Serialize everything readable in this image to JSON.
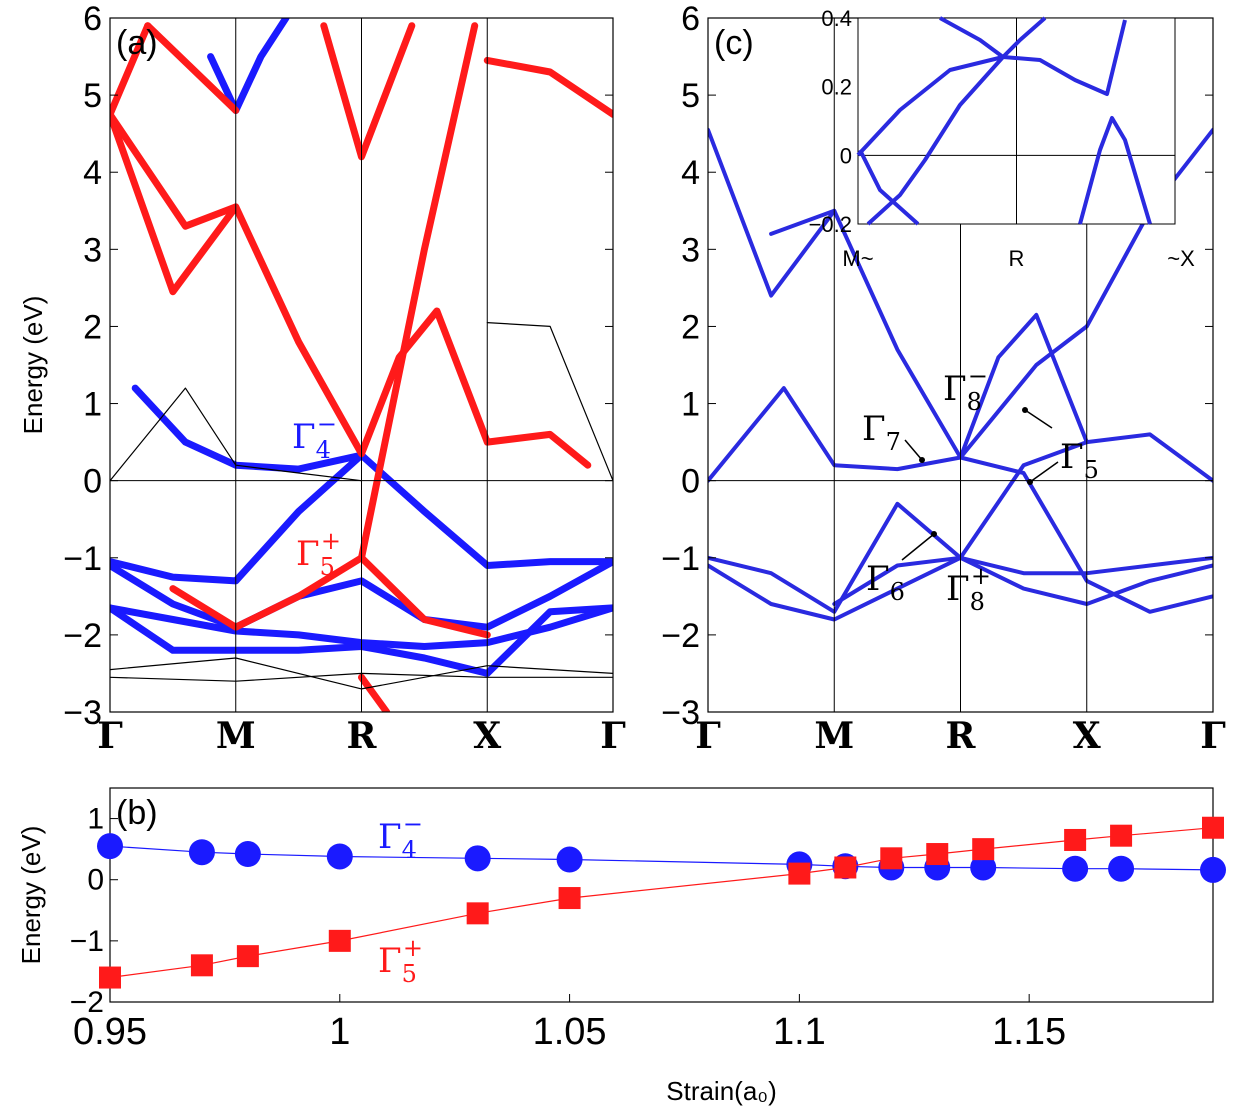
{
  "chart_data": [
    {
      "type": "line",
      "panel_label": "(a)",
      "ylabel": "Energy (eV)",
      "ylim": [
        -3,
        6
      ],
      "yticks": [
        "6",
        "5",
        "4",
        "3",
        "2",
        "1",
        "0",
        "−1",
        "−2",
        "−3"
      ],
      "kpoints": [
        "Γ",
        "M",
        "R",
        "X",
        "Γ"
      ],
      "annotations": [
        {
          "symbol": "Γ",
          "sub": "4",
          "sup": "−",
          "color": "#1a1aff"
        },
        {
          "symbol": "Γ",
          "sub": "5",
          "sup": "+",
          "color": "#ff1a1a"
        }
      ],
      "series": [
        {
          "color": "#1a1aff",
          "points": [
            [
              0,
              -1.05
            ],
            [
              0.5,
              -1.25
            ],
            [
              1,
              -1.3
            ],
            [
              1.5,
              -0.4
            ],
            [
              2,
              0.33
            ],
            [
              2.5,
              -0.4
            ],
            [
              3,
              -1.1
            ],
            [
              3.5,
              -1.05
            ],
            [
              4,
              -1.05
            ]
          ]
        },
        {
          "color": "#1a1aff",
          "points": [
            [
              0,
              -1.65
            ],
            [
              0.5,
              -1.8
            ],
            [
              1,
              -1.95
            ],
            [
              1.5,
              -2.0
            ],
            [
              2,
              -2.1
            ],
            [
              2.5,
              -2.15
            ],
            [
              3,
              -2.1
            ],
            [
              3.5,
              -1.9
            ],
            [
              4,
              -1.65
            ]
          ]
        },
        {
          "color": "#1a1aff",
          "points": [
            [
              0,
              -1.65
            ],
            [
              0.5,
              -2.2
            ],
            [
              1,
              -2.2
            ],
            [
              1.5,
              -2.2
            ],
            [
              2,
              -2.15
            ],
            [
              2.5,
              -2.3
            ],
            [
              3,
              -2.5
            ],
            [
              3.5,
              -1.7
            ],
            [
              4,
              -1.65
            ]
          ]
        },
        {
          "color": "#1a1aff",
          "points": [
            [
              0,
              -1.1
            ],
            [
              0.5,
              -1.6
            ],
            [
              1,
              -1.9
            ],
            [
              1.5,
              -1.5
            ],
            [
              2,
              -1.3
            ],
            [
              2.5,
              -1.8
            ],
            [
              3,
              -1.9
            ],
            [
              3.5,
              -1.5
            ],
            [
              4,
              -1.05
            ]
          ]
        },
        {
          "color": "#1a1aff",
          "points": [
            [
              0.8,
              5.5
            ],
            [
              1,
              4.8
            ],
            [
              1.2,
              5.5
            ],
            [
              1.4,
              6
            ]
          ]
        },
        {
          "color": "#1a1aff",
          "points": [
            [
              0.2,
              1.2
            ],
            [
              0.6,
              0.5
            ],
            [
              1,
              0.2
            ],
            [
              1.5,
              0.15
            ],
            [
              2,
              0.33
            ]
          ]
        },
        {
          "color": "#ff1a1a",
          "points": [
            [
              0,
              4.75
            ],
            [
              0.6,
              3.3
            ],
            [
              1,
              3.55
            ],
            [
              1.5,
              1.8
            ],
            [
              2,
              0.35
            ],
            [
              2.3,
              1.6
            ],
            [
              2.6,
              2.2
            ],
            [
              3,
              0.5
            ],
            [
              3.5,
              0.6
            ],
            [
              3.8,
              0.2
            ]
          ]
        },
        {
          "color": "#ff1a1a",
          "points": [
            [
              0,
              4.75
            ],
            [
              0.5,
              2.45
            ],
            [
              1,
              3.55
            ]
          ]
        },
        {
          "color": "#ff1a1a",
          "points": [
            [
              0.3,
              5.9
            ],
            [
              1,
              4.8
            ]
          ]
        },
        {
          "color": "#ff1a1a",
          "points": [
            [
              1.7,
              5.9
            ],
            [
              2,
              4.2
            ],
            [
              2.4,
              5.9
            ]
          ]
        },
        {
          "color": "#ff1a1a",
          "points": [
            [
              0,
              4.75
            ],
            [
              0.3,
              5.9
            ]
          ]
        },
        {
          "color": "#ff1a1a",
          "points": [
            [
              3,
              5.45
            ],
            [
              3.5,
              5.3
            ],
            [
              4,
              4.75
            ]
          ]
        },
        {
          "color": "#ff1a1a",
          "points": [
            [
              2,
              -1.0
            ],
            [
              2.5,
              3.0
            ],
            [
              2.9,
              5.9
            ]
          ]
        },
        {
          "color": "#ff1a1a",
          "points": [
            [
              0.5,
              -1.4
            ],
            [
              1,
              -1.9
            ],
            [
              1.5,
              -1.5
            ],
            [
              2,
              -1.0
            ],
            [
              2.5,
              -1.8
            ],
            [
              3,
              -2.0
            ]
          ]
        },
        {
          "color": "#ff1a1a",
          "points": [
            [
              2,
              -2.55
            ],
            [
              2.2,
              -3.0
            ]
          ]
        },
        {
          "color": "#000000",
          "points": [
            [
              0,
              0
            ],
            [
              0.6,
              1.2
            ],
            [
              1,
              0.2
            ],
            [
              1.5,
              0.1
            ],
            [
              2,
              0
            ]
          ]
        },
        {
          "color": "#000000",
          "points": [
            [
              0,
              -2.55
            ],
            [
              1,
              -2.6
            ],
            [
              2,
              -2.5
            ],
            [
              3,
              -2.55
            ],
            [
              4,
              -2.55
            ]
          ]
        },
        {
          "color": "#000000",
          "points": [
            [
              0,
              -2.45
            ],
            [
              1,
              -2.3
            ],
            [
              2,
              -2.7
            ],
            [
              3,
              -2.4
            ],
            [
              4,
              -2.5
            ]
          ]
        },
        {
          "color": "#000000",
          "points": [
            [
              3,
              2.05
            ],
            [
              3.5,
              2.0
            ],
            [
              4,
              0.0
            ]
          ]
        }
      ]
    },
    {
      "type": "line",
      "panel_label": "(c)",
      "ylim": [
        -3,
        6
      ],
      "yticks": [
        "6",
        "5",
        "4",
        "3",
        "2",
        "1",
        "0",
        "−1",
        "−2",
        "−3"
      ],
      "kpoints": [
        "Γ",
        "M",
        "R",
        "X",
        "Γ"
      ],
      "annotations": [
        {
          "symbol": "Γ",
          "sub": "7",
          "sup": ""
        },
        {
          "symbol": "Γ",
          "sub": "8",
          "sup": "−"
        },
        {
          "symbol": "Γ",
          "sub": "5",
          "sup": ""
        },
        {
          "symbol": "Γ",
          "sub": "6",
          "sup": ""
        },
        {
          "symbol": "Γ",
          "sub": "8",
          "sup": "+"
        }
      ],
      "series": [
        {
          "color": "#2a2ae0",
          "points": [
            [
              0,
              4.55
            ],
            [
              0.5,
              2.4
            ],
            [
              1,
              3.5
            ],
            [
              1.5,
              1.7
            ],
            [
              2,
              0.3
            ],
            [
              2.3,
              1.6
            ],
            [
              2.6,
              2.15
            ],
            [
              3,
              0.5
            ],
            [
              3.5,
              0.6
            ],
            [
              4,
              0
            ]
          ]
        },
        {
          "color": "#2a2ae0",
          "points": [
            [
              0,
              0
            ],
            [
              0.6,
              1.2
            ],
            [
              1,
              0.2
            ],
            [
              1.5,
              0.15
            ],
            [
              2,
              0.3
            ],
            [
              2.5,
              0.1
            ],
            [
              3,
              -1.3
            ],
            [
              3.5,
              -1.7
            ],
            [
              4,
              -1.5
            ]
          ]
        },
        {
          "color": "#2a2ae0",
          "points": [
            [
              0,
              -1.0
            ],
            [
              0.5,
              -1.2
            ],
            [
              1,
              -1.7
            ],
            [
              1.5,
              -0.3
            ],
            [
              2,
              -1.0
            ],
            [
              2.5,
              0.2
            ],
            [
              3,
              0.5
            ]
          ]
        },
        {
          "color": "#2a2ae0",
          "points": [
            [
              0,
              -1.1
            ],
            [
              0.5,
              -1.6
            ],
            [
              1,
              -1.8
            ],
            [
              1.5,
              -1.4
            ],
            [
              2,
              -1.0
            ],
            [
              2.5,
              -1.2
            ],
            [
              3,
              -1.2
            ],
            [
              3.5,
              -1.1
            ],
            [
              4,
              -1.0
            ]
          ]
        },
        {
          "color": "#2a2ae0",
          "points": [
            [
              1,
              -1.6
            ],
            [
              1.5,
              -1.1
            ],
            [
              2,
              -1.0
            ],
            [
              2.5,
              -1.4
            ],
            [
              3,
              -1.6
            ],
            [
              3.5,
              -1.3
            ],
            [
              4,
              -1.1
            ]
          ]
        },
        {
          "color": "#2a2ae0",
          "points": [
            [
              2,
              0.3
            ],
            [
              2.6,
              1.5
            ],
            [
              3,
              2.0
            ],
            [
              3.5,
              3.5
            ],
            [
              4,
              4.55
            ]
          ]
        },
        {
          "color": "#2a2ae0",
          "points": [
            [
              0.5,
              3.2
            ],
            [
              1,
              3.5
            ]
          ]
        }
      ],
      "inset": {
        "ylim": [
          -0.2,
          0.4
        ],
        "yticks": [
          "0.4",
          "0.2",
          "0",
          "−0.2"
        ],
        "kpoints": [
          "M~",
          "R",
          "~X"
        ]
      }
    },
    {
      "type": "scatter",
      "panel_label": "(b)",
      "xlabel": "Strain(a₀)",
      "ylabel": "Energy (eV)",
      "xlim": [
        0.95,
        1.19
      ],
      "ylim": [
        -2,
        1.5
      ],
      "xticks": [
        "0.95",
        "1",
        "1.05",
        "1.1",
        "1.15"
      ],
      "yticks": [
        "1",
        "0",
        "−1",
        "−2"
      ],
      "annotations": [
        {
          "symbol": "Γ",
          "sub": "4",
          "sup": "−",
          "color": "#1a1aff"
        },
        {
          "symbol": "Γ",
          "sub": "5",
          "sup": "+",
          "color": "#ff1a1a"
        }
      ],
      "series": [
        {
          "color": "#1a1aff",
          "marker": "circle",
          "x": [
            0.95,
            0.97,
            0.98,
            1.0,
            1.03,
            1.05,
            1.1,
            1.11,
            1.12,
            1.13,
            1.14,
            1.16,
            1.17,
            1.19
          ],
          "y": [
            0.55,
            0.45,
            0.42,
            0.38,
            0.35,
            0.33,
            0.25,
            0.22,
            0.2,
            0.2,
            0.2,
            0.18,
            0.18,
            0.16
          ]
        },
        {
          "color": "#ff1a1a",
          "marker": "square",
          "x": [
            0.95,
            0.97,
            0.98,
            1.0,
            1.03,
            1.05,
            1.1,
            1.11,
            1.12,
            1.13,
            1.14,
            1.16,
            1.17,
            1.19
          ],
          "y": [
            -1.6,
            -1.4,
            -1.25,
            -1.0,
            -0.55,
            -0.3,
            0.1,
            0.2,
            0.35,
            0.42,
            0.5,
            0.65,
            0.72,
            0.85
          ]
        }
      ]
    }
  ]
}
